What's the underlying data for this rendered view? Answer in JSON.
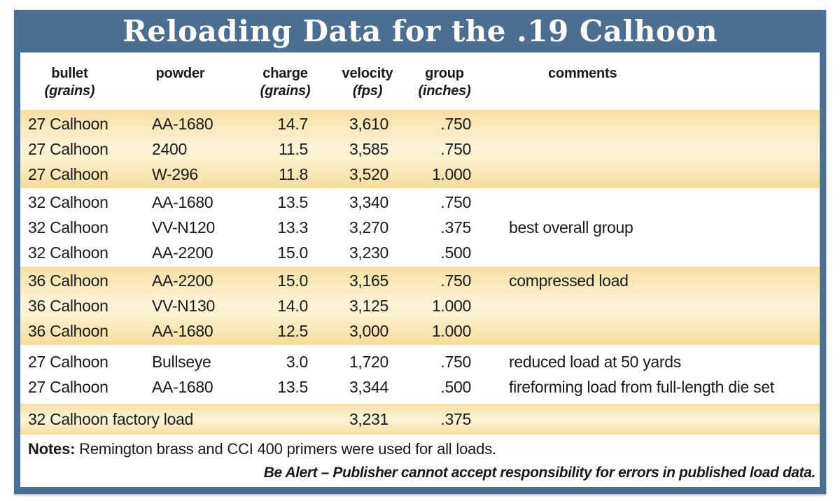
{
  "title": "Reloading Data for the .19 Calhoon",
  "colors": {
    "frame_blue": "#4c6e91",
    "band_gold_edge": "#f6dfa2",
    "band_gold_center": "#fdf4d8",
    "text": "#1a1a1a",
    "title_text": "#ffffff"
  },
  "table": {
    "headers": [
      {
        "key": "bullet",
        "line1": "bullet",
        "line2": "(grains)"
      },
      {
        "key": "powder",
        "line1": "powder",
        "line2": ""
      },
      {
        "key": "charge",
        "line1": "charge",
        "line2": "(grains)"
      },
      {
        "key": "velocity",
        "line1": "velocity",
        "line2": "(fps)"
      },
      {
        "key": "group",
        "line1": "group",
        "line2": "(inches)"
      },
      {
        "key": "comments",
        "line1": "comments",
        "line2": ""
      }
    ],
    "groups": [
      {
        "band": "yellow",
        "rows": [
          {
            "bullet": "27 Calhoon",
            "powder": "AA-1680",
            "charge": "14.7",
            "velocity": "3,610",
            "group": ".750",
            "comments": ""
          },
          {
            "bullet": "27 Calhoon",
            "powder": "2400",
            "charge": "11.5",
            "velocity": "3,585",
            "group": ".750",
            "comments": ""
          },
          {
            "bullet": "27 Calhoon",
            "powder": "W-296",
            "charge": "11.8",
            "velocity": "3,520",
            "group": "1.000",
            "comments": ""
          }
        ]
      },
      {
        "band": "white",
        "rows": [
          {
            "bullet": "32 Calhoon",
            "powder": "AA-1680",
            "charge": "13.5",
            "velocity": "3,340",
            "group": ".750",
            "comments": ""
          },
          {
            "bullet": "32 Calhoon",
            "powder": "VV-N120",
            "charge": "13.3",
            "velocity": "3,270",
            "group": ".375",
            "comments": "best overall group"
          },
          {
            "bullet": "32 Calhoon",
            "powder": "AA-2200",
            "charge": "15.0",
            "velocity": "3,230",
            "group": ".500",
            "comments": ""
          }
        ]
      },
      {
        "band": "yellow",
        "rows": [
          {
            "bullet": "36 Calhoon",
            "powder": "AA-2200",
            "charge": "15.0",
            "velocity": "3,165",
            "group": ".750",
            "comments": "compressed load"
          },
          {
            "bullet": "36 Calhoon",
            "powder": "VV-N130",
            "charge": "14.0",
            "velocity": "3,125",
            "group": "1.000",
            "comments": ""
          },
          {
            "bullet": "36 Calhoon",
            "powder": "AA-1680",
            "charge": "12.5",
            "velocity": "3,000",
            "group": "1.000",
            "comments": ""
          }
        ]
      },
      {
        "band": "white",
        "rows": [
          {
            "bullet": "27 Calhoon",
            "powder": "Bullseye",
            "charge": "3.0",
            "velocity": "1,720",
            "group": ".750",
            "comments": "reduced load at 50 yards"
          },
          {
            "bullet": "27 Calhoon",
            "powder": "AA-1680",
            "charge": "13.5",
            "velocity": "3,344",
            "group": ".500",
            "comments": "fireforming load from full-length die set"
          }
        ]
      },
      {
        "band": "yellow",
        "rows": [
          {
            "bullet": "32 Calhoon factory load",
            "powder": "",
            "charge": "",
            "velocity": "3,231",
            "group": ".375",
            "comments": "",
            "wide": true
          }
        ]
      }
    ]
  },
  "notes": {
    "label": "Notes:",
    "text": "Remington brass and CCI 400 primers were used for all loads.",
    "disclaimer": "Be Alert – Publisher cannot accept responsibility for errors in published load data."
  }
}
